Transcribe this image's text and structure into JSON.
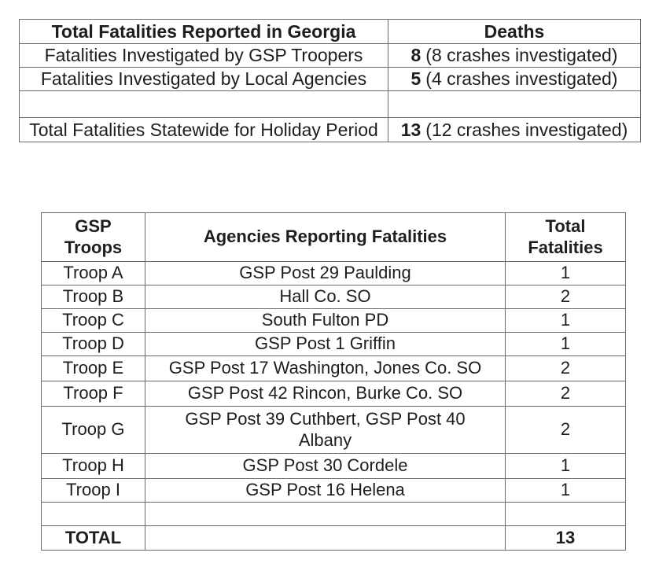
{
  "summary_table": {
    "header": {
      "label_col": "Total Fatalities Reported in Georgia",
      "deaths_col": "Deaths"
    },
    "rows": [
      {
        "label": "Fatalities Investigated by GSP Troopers",
        "value": "8",
        "note": "(8 crashes investigated)"
      },
      {
        "label": "Fatalities Investigated by Local Agencies",
        "value": "5",
        "note": "(4 crashes investigated)"
      },
      {
        "label": "",
        "value": "",
        "note": ""
      },
      {
        "label": "Total Fatalities Statewide for Holiday Period",
        "value": "13",
        "note": "(12 crashes investigated)"
      }
    ]
  },
  "troops_table": {
    "headers": {
      "troop_col": "GSP\nTroops",
      "agency_col": "Agencies Reporting Fatalities",
      "total_col": "Total\nFatalities"
    },
    "rows": [
      {
        "troop": "Troop A",
        "agency": "GSP Post 29 Paulding",
        "total": "1"
      },
      {
        "troop": "Troop B",
        "agency": "Hall Co. SO",
        "total": "2"
      },
      {
        "troop": "Troop C",
        "agency": "South Fulton PD",
        "total": "1"
      },
      {
        "troop": "Troop D",
        "agency": "GSP Post 1 Griffin",
        "total": "1"
      },
      {
        "troop": "Troop E",
        "agency": "GSP Post 17 Washington, Jones Co. SO",
        "total": "2"
      },
      {
        "troop": "Troop F",
        "agency": "GSP Post 42 Rincon, Burke Co. SO",
        "total": "2"
      },
      {
        "troop": "Troop G",
        "agency": "GSP Post 39 Cuthbert, GSP Post 40\nAlbany",
        "total": "2"
      },
      {
        "troop": "Troop H",
        "agency": "GSP Post 30 Cordele",
        "total": "1"
      },
      {
        "troop": "Troop I",
        "agency": "GSP Post 16 Helena",
        "total": "1"
      },
      {
        "troop": "",
        "agency": "",
        "total": ""
      }
    ],
    "footer": {
      "troop": "TOTAL",
      "agency": "",
      "total": "13"
    }
  }
}
